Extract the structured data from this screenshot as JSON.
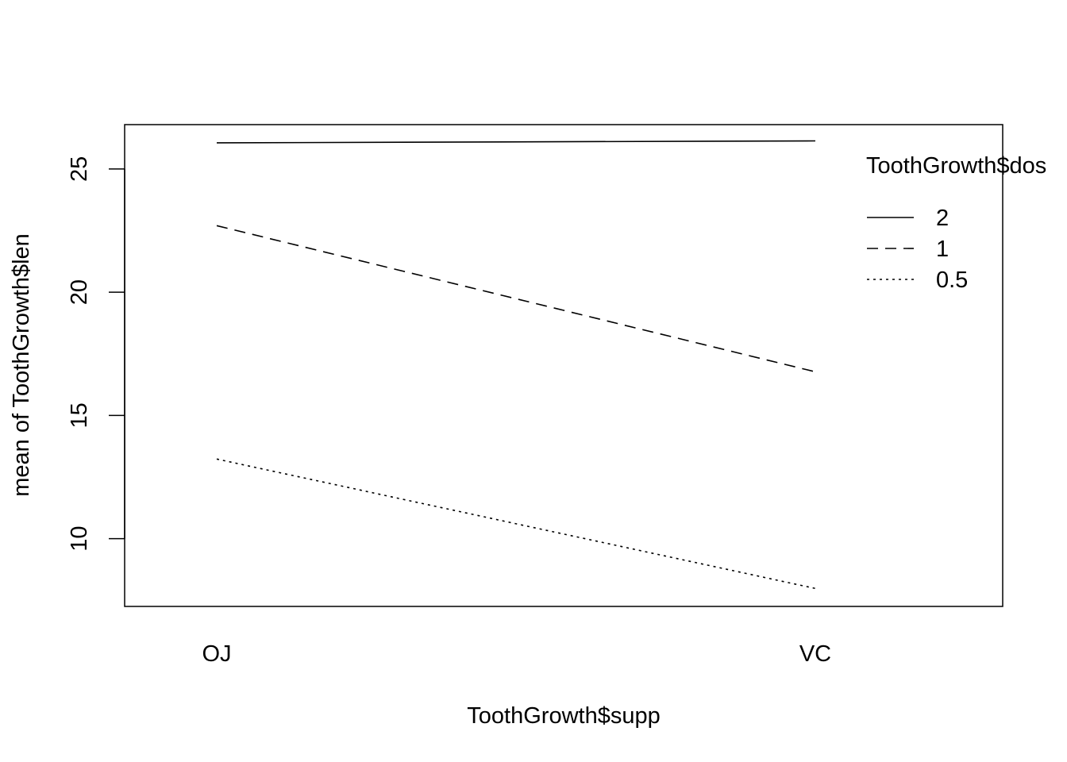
{
  "chart_data": {
    "type": "line",
    "categories": [
      "OJ",
      "VC"
    ],
    "xlabel": "ToothGrowth$supp",
    "ylabel": "mean of  ToothGrowth$len",
    "ylim": [
      7.25,
      26.8
    ],
    "yticks": [
      "10",
      "15",
      "20",
      "25"
    ],
    "legend": {
      "title": "ToothGrowth$dose",
      "position": "top-right",
      "clipped_title": "ToothGrowth$dos"
    },
    "series": [
      {
        "name": "2",
        "values": [
          26.06,
          26.14
        ],
        "line_style": "solid"
      },
      {
        "name": "1",
        "values": [
          22.7,
          16.77
        ],
        "line_style": "dashed"
      },
      {
        "name": "0.5",
        "values": [
          13.23,
          7.98
        ],
        "line_style": "dotted"
      }
    ],
    "colors": {
      "line": "#000000",
      "background": "#ffffff"
    }
  }
}
